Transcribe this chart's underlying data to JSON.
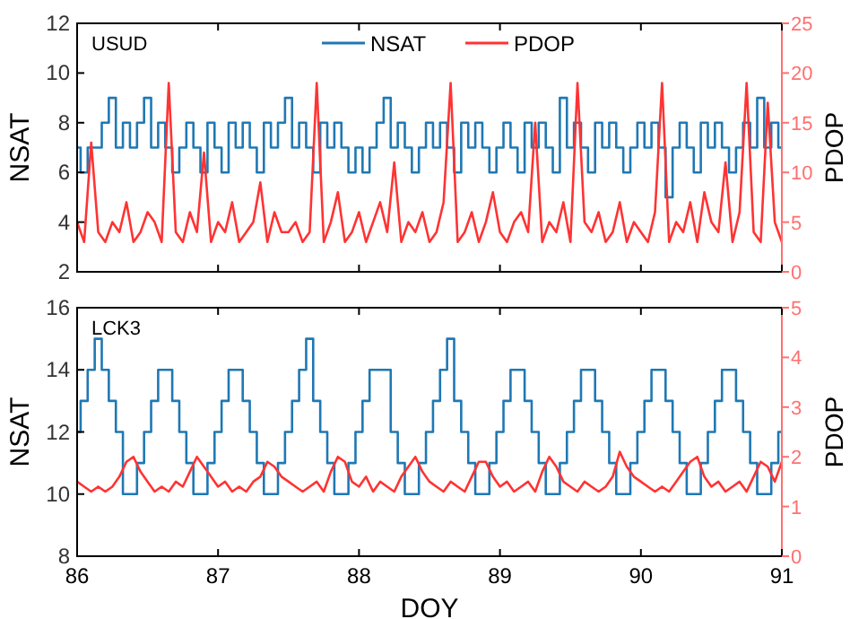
{
  "chart_data": [
    {
      "type": "line",
      "annotations": [
        "USUD"
      ],
      "ylabel": "NSAT",
      "y2label": "PDOP",
      "legend": "top",
      "tick_labels": "y",
      "x": [
        86,
        86.05,
        86.1,
        86.15,
        86.2,
        86.25,
        86.3,
        86.35,
        86.4,
        86.45,
        86.5,
        86.55,
        86.6,
        86.65,
        86.7,
        86.75,
        86.8,
        86.85,
        86.9,
        86.95,
        87,
        87.05,
        87.1,
        87.15,
        87.2,
        87.25,
        87.3,
        87.35,
        87.4,
        87.45,
        87.5,
        87.55,
        87.6,
        87.65,
        87.7,
        87.75,
        87.8,
        87.85,
        87.9,
        87.95,
        88,
        88.05,
        88.1,
        88.15,
        88.2,
        88.25,
        88.3,
        88.35,
        88.4,
        88.45,
        88.5,
        88.55,
        88.6,
        88.65,
        88.7,
        88.75,
        88.8,
        88.85,
        88.9,
        88.95,
        89,
        89.05,
        89.1,
        89.15,
        89.2,
        89.25,
        89.3,
        89.35,
        89.4,
        89.45,
        89.5,
        89.55,
        89.6,
        89.65,
        89.7,
        89.75,
        89.8,
        89.85,
        89.9,
        89.95,
        90,
        90.05,
        90.1,
        90.15,
        90.2,
        90.25,
        90.3,
        90.35,
        90.4,
        90.45,
        90.5,
        90.55,
        90.6,
        90.65,
        90.7,
        90.75,
        90.8,
        90.85,
        90.9,
        90.95,
        91
      ],
      "xlim": [
        86,
        91
      ],
      "xticks": [
        86,
        87,
        88,
        89,
        90,
        91
      ],
      "ylim": [
        2,
        12
      ],
      "yticks": [
        2,
        4,
        6,
        8,
        10,
        12
      ],
      "y2lim": [
        0,
        25
      ],
      "y2ticks": [
        0,
        5,
        10,
        15,
        20,
        25
      ],
      "series": [
        {
          "name": "NSAT",
          "type": "step",
          "color": "#1f78b4",
          "values": [
            7,
            6,
            7,
            7,
            8,
            9,
            7,
            8,
            7,
            8,
            9,
            7,
            8,
            7,
            6,
            7,
            8,
            7,
            6,
            8,
            7,
            6,
            8,
            7,
            8,
            7,
            6,
            8,
            7,
            8,
            9,
            7,
            8,
            7,
            6,
            8,
            7,
            8,
            7,
            6,
            7,
            6,
            7,
            8,
            9,
            7,
            8,
            7,
            6,
            7,
            8,
            7,
            8,
            7,
            6,
            8,
            7,
            8,
            7,
            6,
            7,
            8,
            7,
            6,
            8,
            7,
            8,
            7,
            6,
            9,
            7,
            8,
            7,
            6,
            8,
            7,
            8,
            7,
            6,
            7,
            8,
            7,
            8,
            7,
            5,
            7,
            8,
            7,
            6,
            8,
            7,
            8,
            7,
            6,
            7,
            8,
            7,
            9,
            7,
            8,
            7
          ]
        },
        {
          "name": "PDOP",
          "axis": "y2",
          "color": "#ff3333",
          "values": [
            5,
            3,
            13,
            4,
            3,
            5,
            4,
            7,
            3,
            4,
            6,
            5,
            3,
            19,
            4,
            3,
            6,
            4,
            12,
            3,
            5,
            4,
            7,
            3,
            4,
            5,
            9,
            3,
            6,
            4,
            4,
            5,
            3,
            4,
            19,
            3,
            5,
            8,
            3,
            4,
            6,
            3,
            5,
            7,
            4,
            11,
            3,
            5,
            4,
            6,
            3,
            4,
            7,
            19,
            3,
            4,
            6,
            3,
            5,
            8,
            4,
            3,
            5,
            6,
            4,
            15,
            3,
            5,
            4,
            7,
            3,
            19,
            5,
            4,
            6,
            3,
            4,
            7,
            3,
            5,
            4,
            3,
            6,
            19,
            3,
            5,
            4,
            7,
            3,
            8,
            5,
            4,
            11,
            3,
            6,
            19,
            4,
            3,
            17,
            5,
            3
          ]
        }
      ]
    },
    {
      "type": "line",
      "annotations": [
        "LCK3"
      ],
      "xlabel": "DOY",
      "ylabel": "NSAT",
      "y2label": "PDOP",
      "x": [
        86,
        86.05,
        86.1,
        86.15,
        86.2,
        86.25,
        86.3,
        86.35,
        86.4,
        86.45,
        86.5,
        86.55,
        86.6,
        86.65,
        86.7,
        86.75,
        86.8,
        86.85,
        86.9,
        86.95,
        87,
        87.05,
        87.1,
        87.15,
        87.2,
        87.25,
        87.3,
        87.35,
        87.4,
        87.45,
        87.5,
        87.55,
        87.6,
        87.65,
        87.7,
        87.75,
        87.8,
        87.85,
        87.9,
        87.95,
        88,
        88.05,
        88.1,
        88.15,
        88.2,
        88.25,
        88.3,
        88.35,
        88.4,
        88.45,
        88.5,
        88.55,
        88.6,
        88.65,
        88.7,
        88.75,
        88.8,
        88.85,
        88.9,
        88.95,
        89,
        89.05,
        89.1,
        89.15,
        89.2,
        89.25,
        89.3,
        89.35,
        89.4,
        89.45,
        89.5,
        89.55,
        89.6,
        89.65,
        89.7,
        89.75,
        89.8,
        89.85,
        89.9,
        89.95,
        90,
        90.05,
        90.1,
        90.15,
        90.2,
        90.25,
        90.3,
        90.35,
        90.4,
        90.45,
        90.5,
        90.55,
        90.6,
        90.65,
        90.7,
        90.75,
        90.8,
        90.85,
        90.9,
        90.95,
        91
      ],
      "xlim": [
        86,
        91
      ],
      "xticks": [
        86,
        87,
        88,
        89,
        90,
        91
      ],
      "ylim": [
        8,
        16
      ],
      "yticks": [
        8,
        10,
        12,
        14,
        16
      ],
      "y2lim": [
        0,
        5
      ],
      "y2ticks": [
        0,
        1,
        2,
        3,
        4,
        5
      ],
      "series": [
        {
          "type": "step",
          "color": "#1f78b4",
          "values": [
            12,
            13,
            14,
            15,
            14,
            13,
            12,
            10,
            10,
            11,
            12,
            13,
            14,
            14,
            13,
            12,
            11,
            10,
            10,
            11,
            12,
            13,
            14,
            14,
            13,
            12,
            11,
            10,
            10,
            11,
            12,
            13,
            14,
            15,
            13,
            12,
            11,
            10,
            10,
            11,
            12,
            13,
            14,
            14,
            14,
            12,
            11,
            10,
            10,
            11,
            12,
            13,
            14,
            15,
            13,
            12,
            11,
            10,
            10,
            11,
            12,
            13,
            14,
            14,
            13,
            12,
            11,
            10,
            10,
            11,
            12,
            13,
            14,
            14,
            13,
            12,
            11,
            10,
            10,
            11,
            12,
            13,
            14,
            14,
            13,
            12,
            11,
            10,
            10,
            11,
            12,
            13,
            14,
            14,
            13,
            12,
            11,
            10,
            10,
            11,
            12
          ]
        },
        {
          "axis": "y2",
          "color": "#ff3333",
          "values": [
            1.5,
            1.4,
            1.3,
            1.4,
            1.3,
            1.4,
            1.6,
            1.9,
            2,
            1.7,
            1.5,
            1.3,
            1.4,
            1.3,
            1.5,
            1.4,
            1.7,
            2,
            1.8,
            1.6,
            1.4,
            1.5,
            1.3,
            1.4,
            1.3,
            1.5,
            1.6,
            1.9,
            1.8,
            1.6,
            1.5,
            1.4,
            1.3,
            1.4,
            1.5,
            1.3,
            1.7,
            2,
            1.9,
            1.5,
            1.4,
            1.6,
            1.3,
            1.5,
            1.4,
            1.3,
            1.6,
            1.8,
            2,
            1.7,
            1.5,
            1.4,
            1.3,
            1.5,
            1.4,
            1.3,
            1.6,
            1.9,
            1.9,
            1.6,
            1.4,
            1.5,
            1.3,
            1.4,
            1.5,
            1.3,
            1.7,
            2,
            1.8,
            1.5,
            1.4,
            1.3,
            1.5,
            1.4,
            1.3,
            1.4,
            1.6,
            2.1,
            1.8,
            1.6,
            1.5,
            1.4,
            1.3,
            1.4,
            1.3,
            1.5,
            1.7,
            1.9,
            2,
            1.6,
            1.4,
            1.5,
            1.3,
            1.4,
            1.5,
            1.3,
            1.6,
            1.9,
            1.8,
            1.5,
            1.9
          ]
        }
      ]
    }
  ]
}
